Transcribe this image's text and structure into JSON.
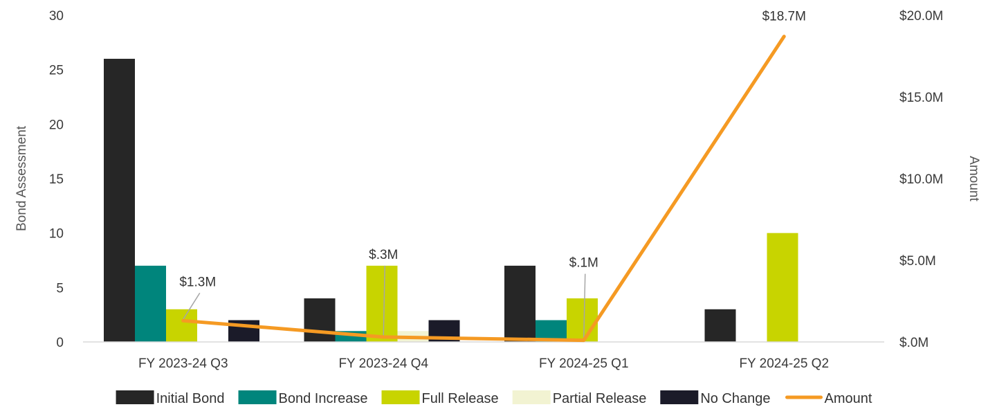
{
  "chart_data": {
    "type": "bar",
    "categories": [
      "FY 2023-24 Q3",
      "FY 2023-24 Q4",
      "FY 2024-25 Q1",
      "FY 2024-25 Q2"
    ],
    "series": [
      {
        "name": "Initial Bond",
        "color": "#262626",
        "values": [
          26,
          4,
          7,
          3
        ]
      },
      {
        "name": "Bond Increase",
        "color": "#00857c",
        "values": [
          7,
          1,
          2,
          0
        ]
      },
      {
        "name": "Full Release",
        "color": "#c8d400",
        "values": [
          3,
          7,
          4,
          10
        ]
      },
      {
        "name": "Partial Release",
        "color": "#f2f3d2",
        "values": [
          0,
          1,
          0,
          0
        ]
      },
      {
        "name": "No Change",
        "color": "#1b1b29",
        "values": [
          2,
          2,
          0,
          0
        ]
      }
    ],
    "line_series": {
      "name": "Amount",
      "color": "#f59a23",
      "values": [
        1.3,
        0.3,
        0.1,
        18.7
      ],
      "labels": [
        "$1.3M",
        "$.3M",
        "$.1M",
        "$18.7M"
      ]
    },
    "ylabel": "Bond Assessment",
    "ylim": [
      0,
      30
    ],
    "yticks": [
      "0",
      "5",
      "10",
      "15",
      "20",
      "25",
      "30"
    ],
    "y2label": "Amount",
    "y2lim": [
      0,
      20
    ],
    "y2ticks": [
      "$.0M",
      "$5.0M",
      "$10.0M",
      "$15.0M",
      "$20.0M"
    ],
    "legend_position": "bottom",
    "grid": false
  }
}
